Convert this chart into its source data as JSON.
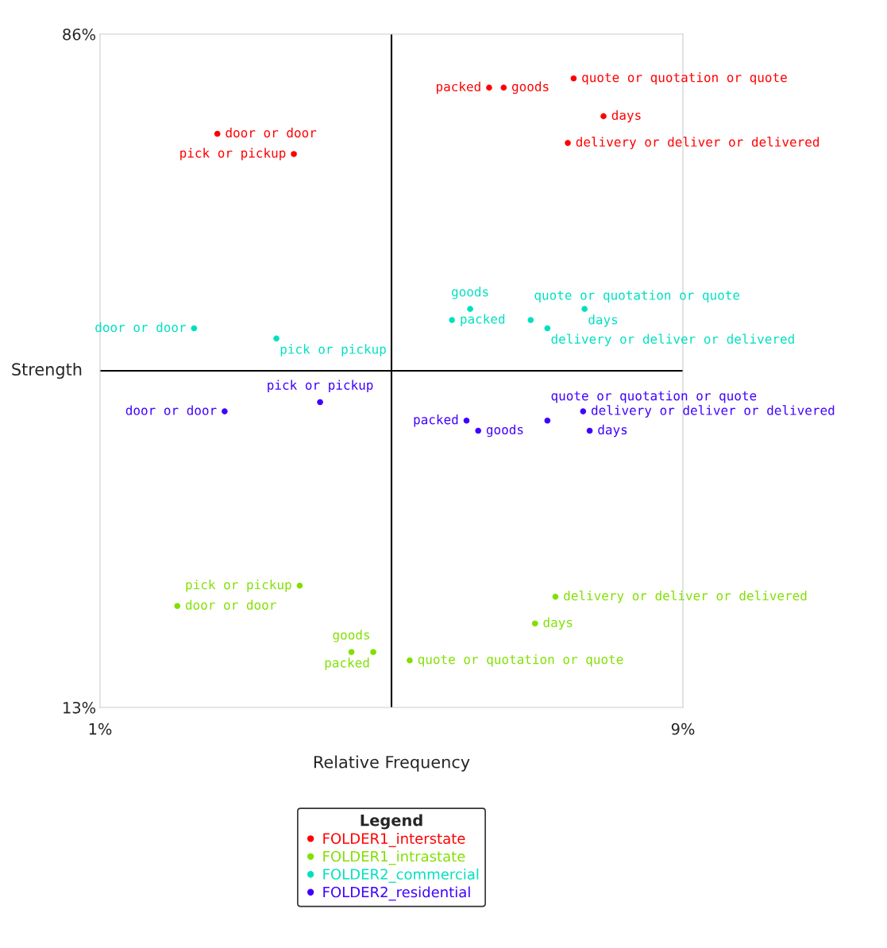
{
  "chart_data": {
    "type": "scatter",
    "xlabel": "Relative Frequency",
    "ylabel": "Strength",
    "legend_title": "Legend",
    "legend": "bottom",
    "grid": false,
    "marker": "circle",
    "xlim": [
      1,
      9
    ],
    "xticks": [
      {
        "value": 1,
        "label": "1%"
      },
      {
        "value": 9,
        "label": "9%"
      }
    ],
    "ylim": [
      13,
      86
    ],
    "yticks": [
      {
        "value": 13,
        "label": "13%"
      },
      {
        "value": 86,
        "label": "86%"
      }
    ],
    "ref_lines": [
      {
        "axis": "x",
        "value": 5,
        "color": "#000000"
      },
      {
        "axis": "y",
        "value": 49.5,
        "color": "#000000"
      }
    ],
    "series": [
      {
        "name": "FOLDER1_interstate",
        "color": "#ff0000",
        "x": [
          2.61,
          3.66,
          6.34,
          6.54,
          7.5,
          7.91,
          7.42
        ],
        "values": [
          75.2,
          73.0,
          80.2,
          80.2,
          81.2,
          77.1,
          74.2
        ],
        "value_labels": [
          "door or door",
          "pick or pickup",
          "packed",
          "goods",
          "quote or quotation or quote",
          "days",
          "delivery or deliver or delivered"
        ]
      },
      {
        "name": "FOLDER1_intrastate",
        "color": "#80e000",
        "x": [
          2.06,
          3.74,
          4.75,
          4.45,
          5.25,
          6.97,
          7.25
        ],
        "values": [
          24.0,
          26.2,
          19.0,
          19.0,
          18.1,
          22.1,
          25.0
        ],
        "value_labels": [
          "door or door",
          "pick or pickup",
          "packed",
          "goods",
          "quote or quotation or quote",
          "days",
          "delivery or deliver or delivered"
        ]
      },
      {
        "name": "FOLDER2_commercial",
        "color": "#00e0c0",
        "x": [
          2.29,
          3.42,
          5.83,
          6.08,
          6.91,
          7.65,
          7.14
        ],
        "values": [
          54.1,
          53.0,
          55.0,
          56.2,
          55.0,
          56.2,
          54.1
        ],
        "value_labels": [
          "door or door",
          "pick or pickup",
          "packed",
          "goods",
          "quote or quotation or quote",
          "days",
          "delivery or deliver or delivered"
        ]
      },
      {
        "name": "FOLDER2_residential",
        "color": "#4000ff",
        "x": [
          2.71,
          4.02,
          6.03,
          6.19,
          7.14,
          7.72,
          7.63
        ],
        "values": [
          45.1,
          46.1,
          44.1,
          43.0,
          44.1,
          43.0,
          45.1
        ],
        "value_labels": [
          "door or door",
          "pick or pickup",
          "packed",
          "goods",
          "quote or quotation or quote",
          "days",
          "delivery or deliver or delivered"
        ]
      }
    ]
  }
}
